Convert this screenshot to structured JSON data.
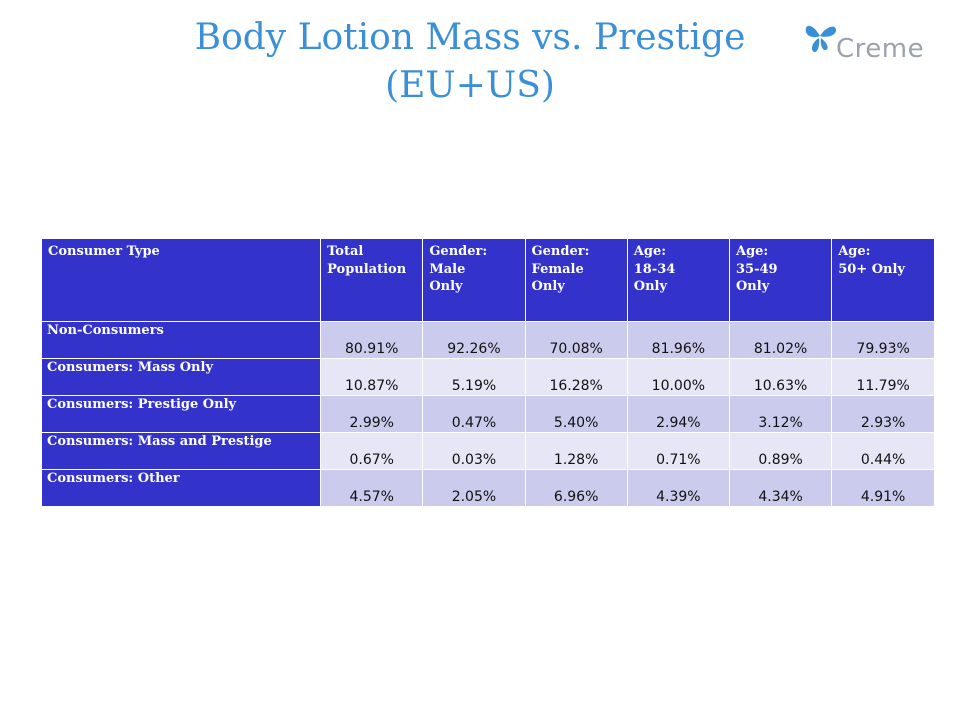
{
  "title": {
    "line1": "Body Lotion Mass vs. Prestige",
    "line2": "(EU+US)"
  },
  "logo": {
    "text": "Creme",
    "icon": "butterfly-icon",
    "icon_color": "#3a8fd6"
  },
  "colors": {
    "title": "#3a8fd6",
    "header_bg": "#3333cc",
    "row_odd_bg": "#cbcbee",
    "row_even_bg": "#e6e6f6"
  },
  "table": {
    "headers": [
      [
        "Consumer Type"
      ],
      [
        "Total",
        "Population"
      ],
      [
        "Gender:",
        "Male",
        "Only"
      ],
      [
        "Gender:",
        "Female",
        "Only"
      ],
      [
        "Age:",
        "18-34",
        "Only"
      ],
      [
        "Age:",
        "35-49",
        "Only"
      ],
      [
        "Age:",
        "50+ Only"
      ]
    ],
    "rows": [
      {
        "label": "Non-Consumers",
        "values": [
          "80.91%",
          "92.26%",
          "70.08%",
          "81.96%",
          "81.02%",
          "79.93%"
        ]
      },
      {
        "label": "Consumers: Mass Only",
        "values": [
          "10.87%",
          "5.19%",
          "16.28%",
          "10.00%",
          "10.63%",
          "11.79%"
        ]
      },
      {
        "label": "Consumers: Prestige Only",
        "values": [
          "2.99%",
          "0.47%",
          "5.40%",
          "2.94%",
          "3.12%",
          "2.93%"
        ]
      },
      {
        "label": "Consumers: Mass and Prestige",
        "values": [
          "0.67%",
          "0.03%",
          "1.28%",
          "0.71%",
          "0.89%",
          "0.44%"
        ]
      },
      {
        "label": "Consumers: Other",
        "values": [
          "4.57%",
          "2.05%",
          "6.96%",
          "4.39%",
          "4.34%",
          "4.91%"
        ]
      }
    ]
  }
}
